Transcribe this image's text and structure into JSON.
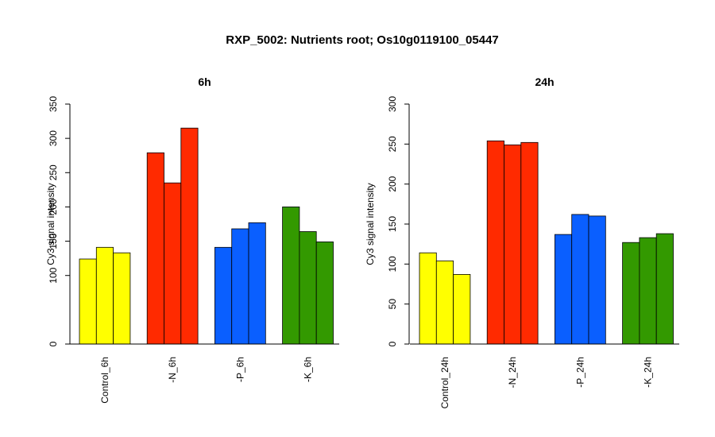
{
  "title": "RXP_5002: Nutrients root; Os10g0119100_05447",
  "chart_data": [
    {
      "type": "bar",
      "title": "6h",
      "ylabel": "Cy3 signal intensity",
      "xlabel": "",
      "ylim": [
        0,
        350
      ],
      "yticks": [
        0,
        100,
        150,
        200,
        250,
        300,
        350
      ],
      "groups": [
        {
          "label": "Control_6h",
          "color": "#FFFF00",
          "values": [
            124,
            141,
            133
          ]
        },
        {
          "label": "-N_6h",
          "color": "#FF2A00",
          "values": [
            279,
            235,
            315
          ]
        },
        {
          "label": "-P_6h",
          "color": "#0A5FFF",
          "values": [
            141,
            168,
            177
          ]
        },
        {
          "label": "-K_6h",
          "color": "#339900",
          "values": [
            200,
            164,
            149
          ]
        }
      ]
    },
    {
      "type": "bar",
      "title": "24h",
      "ylabel": "Cy3 signal intensity",
      "xlabel": "",
      "ylim": [
        0,
        300
      ],
      "yticks": [
        0,
        50,
        100,
        150,
        200,
        250,
        300
      ],
      "groups": [
        {
          "label": "Control_24h",
          "color": "#FFFF00",
          "values": [
            114,
            104,
            87
          ]
        },
        {
          "label": "-N_24h",
          "color": "#FF2A00",
          "values": [
            254,
            249,
            252
          ]
        },
        {
          "label": "-P_24h",
          "color": "#0A5FFF",
          "values": [
            137,
            162,
            160
          ]
        },
        {
          "label": "-K_24h",
          "color": "#339900",
          "values": [
            127,
            133,
            138
          ]
        }
      ]
    }
  ]
}
